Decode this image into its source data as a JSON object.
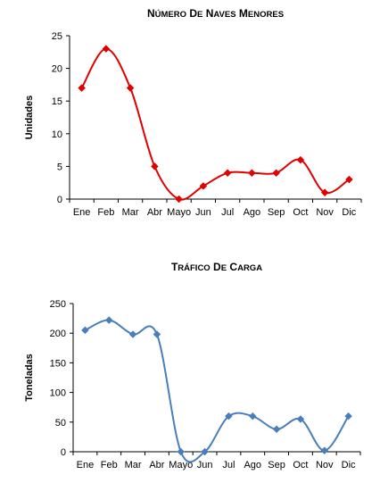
{
  "chart_data": [
    {
      "type": "line",
      "title": "Número de Naves Menores",
      "xlabel": "",
      "ylabel": "Unidades",
      "categories": [
        "Ene",
        "Feb",
        "Mar",
        "Abr",
        "Mayo",
        "Jun",
        "Jul",
        "Ago",
        "Sep",
        "Oct",
        "Nov",
        "Dic"
      ],
      "series": [
        {
          "values": [
            17,
            23,
            17,
            5,
            0,
            2,
            4,
            4,
            4,
            6,
            1,
            3
          ],
          "color": "#e00000",
          "marker": "diamond"
        }
      ],
      "ylim": [
        0,
        25
      ],
      "yticks": [
        0,
        5,
        10,
        15,
        20,
        25
      ],
      "grid": false,
      "smooth": true
    },
    {
      "type": "line",
      "title": "Tráfico de Carga",
      "xlabel": "",
      "ylabel": "Toneladas",
      "categories": [
        "Ene",
        "Feb",
        "Mar",
        "Abr",
        "Mayo",
        "Jun",
        "Jul",
        "Ago",
        "Sep",
        "Oct",
        "Nov",
        "Dic"
      ],
      "series": [
        {
          "values": [
            205,
            222,
            198,
            198,
            0,
            0,
            60,
            60,
            38,
            55,
            2,
            60
          ],
          "color": "#4a7ebb",
          "marker": "diamond"
        }
      ],
      "ylim": [
        0,
        250
      ],
      "yticks": [
        0,
        50,
        100,
        150,
        200,
        250
      ],
      "grid": false,
      "smooth": true
    }
  ]
}
